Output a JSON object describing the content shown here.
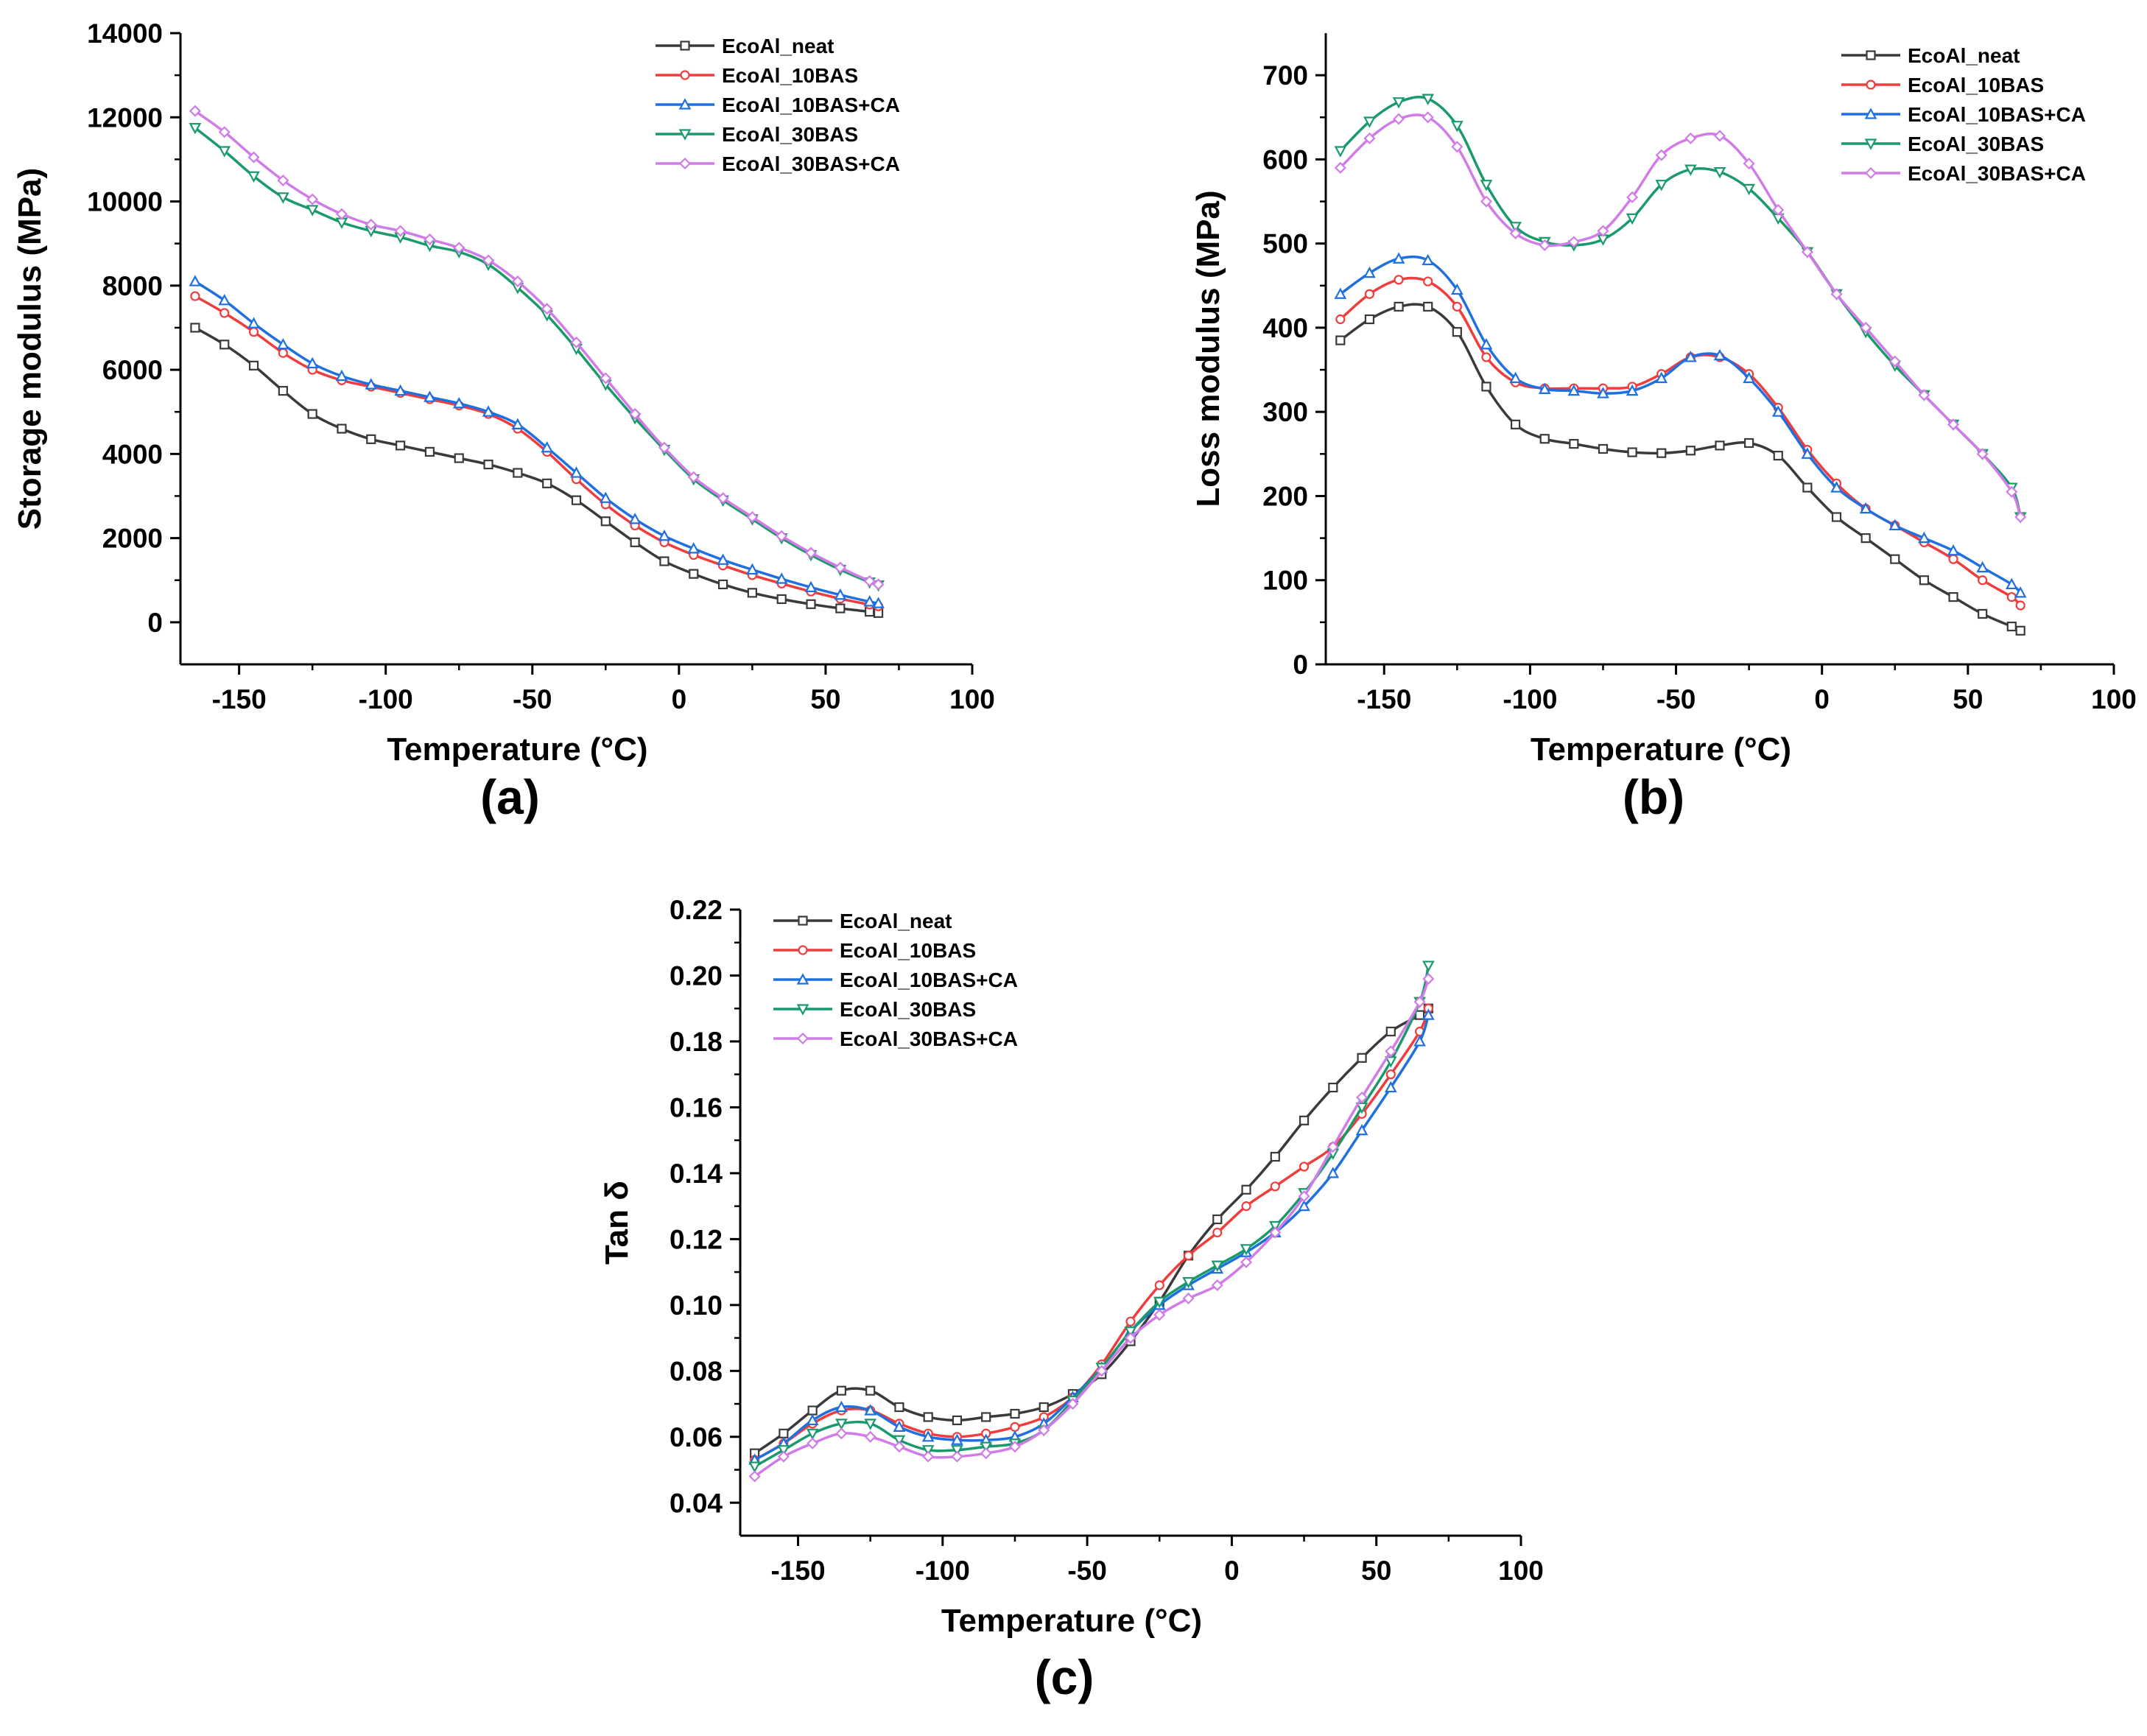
{
  "chart_data": [
    {
      "type": "line",
      "panel": "(a)",
      "xlabel": "Temperature (°C)",
      "ylabel": "Storage modulus (MPa)",
      "xlim": [
        -170,
        100
      ],
      "ylim": [
        -1000,
        14000
      ],
      "xticks": [
        -150,
        -100,
        -50,
        0,
        50,
        100
      ],
      "yticks": [
        0,
        2000,
        4000,
        6000,
        8000,
        10000,
        12000,
        14000
      ],
      "legend_position": "top-right",
      "series": [
        {
          "name": "EcoAl_neat",
          "color": "#3a3a3a",
          "marker": "square",
          "x": [
            -165,
            -155,
            -145,
            -135,
            -125,
            -115,
            -105,
            -95,
            -85,
            -75,
            -65,
            -55,
            -45,
            -35,
            -25,
            -15,
            -5,
            5,
            15,
            25,
            35,
            45,
            55,
            65,
            68
          ],
          "y": [
            7000,
            6600,
            6100,
            5500,
            4950,
            4600,
            4350,
            4200,
            4050,
            3900,
            3750,
            3550,
            3300,
            2900,
            2400,
            1900,
            1450,
            1150,
            900,
            700,
            550,
            430,
            330,
            250,
            220
          ]
        },
        {
          "name": "EcoAl_10BAS",
          "color": "#f03c3c",
          "marker": "circle",
          "x": [
            -165,
            -155,
            -145,
            -135,
            -125,
            -115,
            -105,
            -95,
            -85,
            -75,
            -65,
            -55,
            -45,
            -35,
            -25,
            -15,
            -5,
            5,
            15,
            25,
            35,
            45,
            55,
            65,
            68
          ],
          "y": [
            7750,
            7350,
            6900,
            6400,
            6000,
            5750,
            5600,
            5450,
            5300,
            5150,
            4950,
            4600,
            4050,
            3400,
            2800,
            2300,
            1900,
            1600,
            1350,
            1120,
            920,
            730,
            560,
            420,
            380
          ]
        },
        {
          "name": "EcoAl_10BAS+CA",
          "color": "#1e6fe0",
          "marker": "triangle-up",
          "x": [
            -165,
            -155,
            -145,
            -135,
            -125,
            -115,
            -105,
            -95,
            -85,
            -75,
            -65,
            -55,
            -45,
            -35,
            -25,
            -15,
            -5,
            5,
            15,
            25,
            35,
            45,
            55,
            65,
            68
          ],
          "y": [
            8100,
            7650,
            7100,
            6600,
            6150,
            5850,
            5650,
            5500,
            5350,
            5200,
            5000,
            4700,
            4150,
            3550,
            2950,
            2450,
            2050,
            1750,
            1480,
            1250,
            1030,
            830,
            650,
            490,
            450
          ]
        },
        {
          "name": "EcoAl_30BAS",
          "color": "#1a9a6a",
          "marker": "triangle-down",
          "x": [
            -165,
            -155,
            -145,
            -135,
            -125,
            -115,
            -105,
            -95,
            -85,
            -75,
            -65,
            -55,
            -45,
            -35,
            -25,
            -15,
            -5,
            5,
            15,
            25,
            35,
            45,
            55,
            65,
            68
          ],
          "y": [
            11750,
            11200,
            10600,
            10100,
            9800,
            9500,
            9300,
            9150,
            8950,
            8800,
            8500,
            7950,
            7300,
            6500,
            5650,
            4850,
            4100,
            3400,
            2900,
            2450,
            2000,
            1600,
            1250,
            950,
            880
          ]
        },
        {
          "name": "EcoAl_30BAS+CA",
          "color": "#d07be8",
          "marker": "diamond",
          "x": [
            -165,
            -155,
            -145,
            -135,
            -125,
            -115,
            -105,
            -95,
            -85,
            -75,
            -65,
            -55,
            -45,
            -35,
            -25,
            -15,
            -5,
            5,
            15,
            25,
            35,
            45,
            55,
            65,
            68
          ],
          "y": [
            12150,
            11650,
            11050,
            10500,
            10050,
            9700,
            9450,
            9300,
            9100,
            8900,
            8600,
            8100,
            7450,
            6650,
            5800,
            4950,
            4150,
            3450,
            2950,
            2500,
            2050,
            1650,
            1300,
            980,
            900
          ]
        }
      ]
    },
    {
      "type": "line",
      "panel": "(b)",
      "xlabel": "Temperature (°C)",
      "ylabel": "Loss modulus (MPa)",
      "xlim": [
        -170,
        100
      ],
      "ylim": [
        0,
        750
      ],
      "xticks": [
        -150,
        -100,
        -50,
        0,
        50,
        100
      ],
      "yticks": [
        0,
        100,
        200,
        300,
        400,
        500,
        600,
        700
      ],
      "legend_position": "top-right",
      "series": [
        {
          "name": "EcoAl_neat",
          "color": "#3a3a3a",
          "marker": "square",
          "x": [
            -165,
            -155,
            -145,
            -135,
            -125,
            -115,
            -105,
            -95,
            -85,
            -75,
            -65,
            -55,
            -45,
            -35,
            -25,
            -15,
            -5,
            5,
            15,
            25,
            35,
            45,
            55,
            65,
            68
          ],
          "y": [
            385,
            410,
            425,
            425,
            395,
            330,
            285,
            268,
            262,
            256,
            252,
            251,
            254,
            260,
            263,
            248,
            210,
            175,
            150,
            125,
            100,
            80,
            60,
            45,
            40
          ]
        },
        {
          "name": "EcoAl_10BAS",
          "color": "#f03c3c",
          "marker": "circle",
          "x": [
            -165,
            -155,
            -145,
            -135,
            -125,
            -115,
            -105,
            -95,
            -85,
            -75,
            -65,
            -55,
            -45,
            -35,
            -25,
            -15,
            -5,
            5,
            15,
            25,
            35,
            45,
            55,
            65,
            68
          ],
          "y": [
            410,
            440,
            457,
            455,
            425,
            365,
            335,
            328,
            328,
            328,
            330,
            345,
            365,
            365,
            345,
            305,
            255,
            215,
            185,
            165,
            145,
            125,
            100,
            80,
            70
          ]
        },
        {
          "name": "EcoAl_10BAS+CA",
          "color": "#1e6fe0",
          "marker": "triangle-up",
          "x": [
            -165,
            -155,
            -145,
            -135,
            -125,
            -115,
            -105,
            -95,
            -85,
            -75,
            -65,
            -55,
            -45,
            -35,
            -25,
            -15,
            -5,
            5,
            15,
            25,
            35,
            45,
            55,
            65,
            68
          ],
          "y": [
            440,
            465,
            482,
            480,
            445,
            380,
            340,
            327,
            325,
            322,
            325,
            340,
            365,
            367,
            340,
            300,
            250,
            210,
            185,
            165,
            150,
            135,
            115,
            95,
            85
          ]
        },
        {
          "name": "EcoAl_30BAS",
          "color": "#1a9a6a",
          "marker": "triangle-down",
          "x": [
            -165,
            -155,
            -145,
            -135,
            -125,
            -115,
            -105,
            -95,
            -85,
            -75,
            -65,
            -55,
            -45,
            -35,
            -25,
            -15,
            -5,
            5,
            15,
            25,
            35,
            45,
            55,
            65,
            68
          ],
          "y": [
            610,
            645,
            668,
            672,
            640,
            570,
            520,
            502,
            498,
            505,
            530,
            570,
            588,
            585,
            565,
            530,
            490,
            440,
            395,
            355,
            320,
            285,
            250,
            210,
            175
          ]
        },
        {
          "name": "EcoAl_30BAS+CA",
          "color": "#d07be8",
          "marker": "diamond",
          "x": [
            -165,
            -155,
            -145,
            -135,
            -125,
            -115,
            -105,
            -95,
            -85,
            -75,
            -65,
            -55,
            -45,
            -35,
            -25,
            -15,
            -5,
            5,
            15,
            25,
            35,
            45,
            55,
            65,
            68
          ],
          "y": [
            590,
            625,
            648,
            650,
            615,
            550,
            512,
            498,
            502,
            515,
            555,
            605,
            625,
            628,
            595,
            540,
            490,
            440,
            400,
            360,
            320,
            285,
            250,
            205,
            175
          ]
        }
      ]
    },
    {
      "type": "line",
      "panel": "(c)",
      "xlabel": "Temperature (°C)",
      "ylabel": "Tan δ",
      "xlim": [
        -170,
        100
      ],
      "ylim": [
        0.03,
        0.22
      ],
      "xticks": [
        -150,
        -100,
        -50,
        0,
        50,
        100
      ],
      "yticks": [
        0.04,
        0.06,
        0.08,
        0.1,
        0.12,
        0.14,
        0.16,
        0.18,
        0.2,
        0.22
      ],
      "ytick_labels": [
        "0.04",
        "0.06",
        "0.08",
        "0.10",
        "0.12",
        "0.14",
        "0.16",
        "0.18",
        "0.20",
        "0.22"
      ],
      "legend_position": "top-left",
      "series": [
        {
          "name": "EcoAl_neat",
          "color": "#3a3a3a",
          "marker": "square",
          "x": [
            -165,
            -155,
            -145,
            -135,
            -125,
            -115,
            -105,
            -95,
            -85,
            -75,
            -65,
            -55,
            -45,
            -35,
            -25,
            -15,
            -5,
            5,
            15,
            25,
            35,
            45,
            55,
            65,
            68
          ],
          "y": [
            0.055,
            0.061,
            0.068,
            0.074,
            0.074,
            0.069,
            0.066,
            0.065,
            0.066,
            0.067,
            0.069,
            0.073,
            0.079,
            0.089,
            0.101,
            0.115,
            0.126,
            0.135,
            0.145,
            0.156,
            0.166,
            0.175,
            0.183,
            0.188,
            0.19
          ]
        },
        {
          "name": "EcoAl_10BAS",
          "color": "#f03c3c",
          "marker": "circle",
          "x": [
            -165,
            -155,
            -145,
            -135,
            -125,
            -115,
            -105,
            -95,
            -85,
            -75,
            -65,
            -55,
            -45,
            -35,
            -25,
            -15,
            -5,
            5,
            15,
            25,
            35,
            45,
            55,
            65,
            68
          ],
          "y": [
            0.053,
            0.058,
            0.064,
            0.068,
            0.068,
            0.064,
            0.061,
            0.06,
            0.061,
            0.063,
            0.066,
            0.072,
            0.082,
            0.095,
            0.106,
            0.115,
            0.122,
            0.13,
            0.136,
            0.142,
            0.148,
            0.158,
            0.17,
            0.183,
            0.19
          ]
        },
        {
          "name": "EcoAl_10BAS+CA",
          "color": "#1e6fe0",
          "marker": "triangle-up",
          "x": [
            -165,
            -155,
            -145,
            -135,
            -125,
            -115,
            -105,
            -95,
            -85,
            -75,
            -65,
            -55,
            -45,
            -35,
            -25,
            -15,
            -5,
            5,
            15,
            25,
            35,
            45,
            55,
            65,
            68
          ],
          "y": [
            0.053,
            0.058,
            0.065,
            0.069,
            0.068,
            0.063,
            0.06,
            0.059,
            0.059,
            0.06,
            0.064,
            0.072,
            0.081,
            0.092,
            0.1,
            0.106,
            0.111,
            0.116,
            0.122,
            0.13,
            0.14,
            0.153,
            0.166,
            0.18,
            0.188
          ]
        },
        {
          "name": "EcoAl_30BAS",
          "color": "#1a9a6a",
          "marker": "triangle-down",
          "x": [
            -165,
            -155,
            -145,
            -135,
            -125,
            -115,
            -105,
            -95,
            -85,
            -75,
            -65,
            -55,
            -45,
            -35,
            -25,
            -15,
            -5,
            5,
            15,
            25,
            35,
            45,
            55,
            65,
            68
          ],
          "y": [
            0.051,
            0.056,
            0.061,
            0.064,
            0.064,
            0.059,
            0.056,
            0.056,
            0.057,
            0.058,
            0.062,
            0.071,
            0.081,
            0.092,
            0.101,
            0.107,
            0.112,
            0.117,
            0.124,
            0.134,
            0.146,
            0.16,
            0.174,
            0.192,
            0.203
          ]
        },
        {
          "name": "EcoAl_30BAS+CA",
          "color": "#d07be8",
          "marker": "diamond",
          "x": [
            -165,
            -155,
            -145,
            -135,
            -125,
            -115,
            -105,
            -95,
            -85,
            -75,
            -65,
            -55,
            -45,
            -35,
            -25,
            -15,
            -5,
            5,
            15,
            25,
            35,
            45,
            55,
            65,
            68
          ],
          "y": [
            0.048,
            0.054,
            0.058,
            0.061,
            0.06,
            0.057,
            0.054,
            0.054,
            0.055,
            0.057,
            0.062,
            0.07,
            0.08,
            0.09,
            0.097,
            0.102,
            0.106,
            0.113,
            0.122,
            0.133,
            0.148,
            0.163,
            0.177,
            0.192,
            0.199
          ]
        }
      ]
    }
  ]
}
